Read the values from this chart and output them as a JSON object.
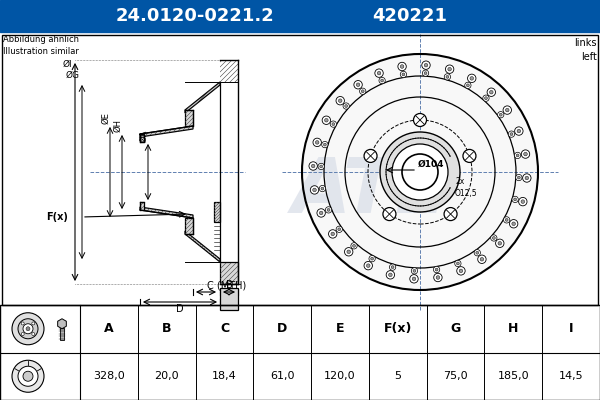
{
  "title_part_number": "24.0120-0221.2",
  "title_ref_number": "420221",
  "title_bg_color": "#0055a5",
  "title_text_color": "#ffffff",
  "subtitle_left": "Abbildung ähnlich\nIllustration similar",
  "subtitle_right": "links\nleft",
  "bg_color": "#ffffff",
  "table_headers": [
    "A",
    "B",
    "C",
    "D",
    "E",
    "F(x)",
    "G",
    "H",
    "I"
  ],
  "table_values": [
    "328,0",
    "20,0",
    "18,4",
    "61,0",
    "120,0",
    "5",
    "75,0",
    "185,0",
    "14,5"
  ],
  "center_label": "Ø104",
  "small_label": "2x\nÒ12,5",
  "watermark_color": "#d8dde8",
  "line_color": "#000000",
  "dim_color": "#0055a5",
  "hatch_color": "#555555",
  "crosshair_color": "#6080b0"
}
